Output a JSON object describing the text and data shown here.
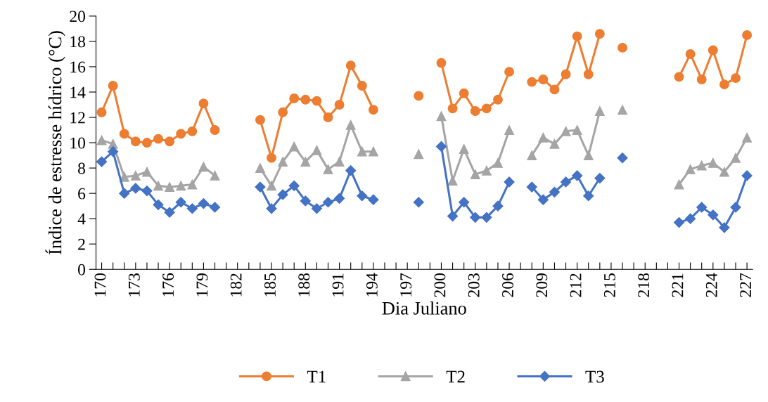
{
  "chart_data": {
    "type": "line",
    "xlabel": "Dia Juliano",
    "ylabel": "Índice de estresse hídrico (°C)",
    "x": [
      170,
      171,
      172,
      173,
      174,
      175,
      176,
      177,
      178,
      179,
      180,
      181,
      182,
      183,
      184,
      185,
      186,
      187,
      188,
      189,
      190,
      191,
      192,
      193,
      194,
      195,
      196,
      197,
      198,
      199,
      200,
      201,
      202,
      203,
      204,
      205,
      206,
      207,
      208,
      209,
      210,
      211,
      212,
      213,
      214,
      215,
      216,
      217,
      218,
      219,
      220,
      221,
      222,
      223,
      224,
      225,
      226,
      227
    ],
    "series": [
      {
        "name": "T1",
        "color": "#ed7d31",
        "marker": "circle",
        "values": [
          12.4,
          14.5,
          10.7,
          10.1,
          10.0,
          10.3,
          10.1,
          10.7,
          10.9,
          13.1,
          11.0,
          null,
          null,
          null,
          11.8,
          8.8,
          12.4,
          13.5,
          13.4,
          13.3,
          12.0,
          13.0,
          16.1,
          14.5,
          12.6,
          null,
          null,
          null,
          13.7,
          null,
          16.3,
          12.7,
          13.9,
          12.5,
          12.7,
          13.4,
          15.6,
          null,
          14.8,
          15.0,
          14.2,
          15.4,
          18.4,
          15.4,
          18.6,
          null,
          17.5,
          null,
          null,
          null,
          null,
          15.2,
          17.0,
          15.0,
          17.3,
          14.6,
          15.1,
          18.5
        ]
      },
      {
        "name": "T2",
        "color": "#a5a5a5",
        "marker": "triangle",
        "values": [
          10.2,
          9.9,
          7.3,
          7.4,
          7.7,
          6.6,
          6.5,
          6.6,
          6.7,
          8.1,
          7.4,
          null,
          null,
          null,
          8.0,
          6.6,
          8.5,
          9.7,
          8.5,
          9.4,
          7.9,
          8.5,
          11.4,
          9.3,
          9.3,
          null,
          null,
          null,
          9.1,
          null,
          12.1,
          7.0,
          9.5,
          7.5,
          7.8,
          8.4,
          11.0,
          null,
          9.0,
          10.4,
          9.9,
          10.9,
          11.0,
          9.0,
          12.5,
          null,
          12.6,
          null,
          null,
          null,
          null,
          6.7,
          7.9,
          8.2,
          8.4,
          7.7,
          8.8,
          10.4
        ]
      },
      {
        "name": "T3",
        "color": "#4472c4",
        "marker": "diamond",
        "values": [
          8.5,
          9.3,
          6.0,
          6.4,
          6.2,
          5.1,
          4.5,
          5.3,
          4.8,
          5.2,
          4.9,
          null,
          null,
          null,
          6.5,
          4.8,
          5.9,
          6.6,
          5.4,
          4.8,
          5.3,
          5.6,
          7.8,
          5.8,
          5.5,
          null,
          null,
          null,
          5.3,
          null,
          9.7,
          4.2,
          5.3,
          4.1,
          4.1,
          5.0,
          6.9,
          null,
          6.5,
          5.5,
          6.1,
          6.9,
          7.4,
          5.8,
          7.2,
          null,
          8.8,
          null,
          null,
          null,
          null,
          3.7,
          4.0,
          4.9,
          4.3,
          3.3,
          4.9,
          7.4
        ]
      }
    ],
    "xlim": [
      169.5,
      227.5
    ],
    "xticks": [
      170,
      {
        "value": 171,
        "label": null
      },
      {
        "value": 172,
        "label": null
      },
      173,
      {
        "value": 174,
        "label": null
      },
      {
        "value": 175,
        "label": null
      },
      176,
      {
        "value": 177,
        "label": null
      },
      {
        "value": 178,
        "label": null
      },
      179,
      {
        "value": 180,
        "label": null
      },
      {
        "value": 181,
        "label": null
      },
      182,
      {
        "value": 183,
        "label": null
      },
      {
        "value": 184,
        "label": null
      },
      185,
      {
        "value": 186,
        "label": null
      },
      {
        "value": 187,
        "label": null
      },
      188,
      {
        "value": 189,
        "label": null
      },
      {
        "value": 190,
        "label": null
      },
      191,
      {
        "value": 192,
        "label": null
      },
      {
        "value": 193,
        "label": null
      },
      194,
      {
        "value": 195,
        "label": null
      },
      {
        "value": 196,
        "label": null
      },
      197,
      {
        "value": 198,
        "label": null
      },
      {
        "value": 199,
        "label": null
      },
      200,
      {
        "value": 201,
        "label": null
      },
      {
        "value": 202,
        "label": null
      },
      203,
      {
        "value": 204,
        "label": null
      },
      {
        "value": 205,
        "label": null
      },
      206,
      {
        "value": 207,
        "label": null
      },
      {
        "value": 208,
        "label": null
      },
      209,
      {
        "value": 210,
        "label": null
      },
      {
        "value": 211,
        "label": null
      },
      212,
      {
        "value": 213,
        "label": null
      },
      {
        "value": 214,
        "label": null
      },
      215,
      {
        "value": 216,
        "label": null
      },
      {
        "value": 217,
        "label": null
      },
      218,
      {
        "value": 219,
        "label": null
      },
      {
        "value": 220,
        "label": null
      },
      221,
      {
        "value": 222,
        "label": null
      },
      {
        "value": 223,
        "label": null
      },
      224,
      {
        "value": 225,
        "label": null
      },
      {
        "value": 226,
        "label": null
      },
      227
    ],
    "ylim": [
      0,
      20
    ],
    "yticks": [
      0,
      2,
      4,
      6,
      8,
      10,
      12,
      14,
      16,
      18,
      20
    ],
    "grid": false,
    "legend": "bottom",
    "line_style": "solid"
  }
}
